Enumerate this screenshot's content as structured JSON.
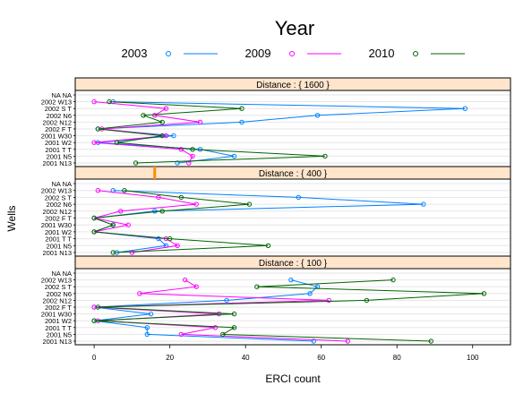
{
  "chart_data": {
    "type": "line",
    "title": "Year",
    "xlabel": "ERCI count",
    "ylabel": "Wells",
    "xlim": [
      -5,
      110
    ],
    "x_ticks": [
      0,
      20,
      40,
      60,
      80,
      100
    ],
    "wells": [
      "2001 N13",
      "2001 N5",
      "2001 T T",
      "2001 W2",
      "2001 W30",
      "2002 F T",
      "2002 N12",
      "2002 N6",
      "2002 S T",
      "2002 W13",
      "NA NA"
    ],
    "legend": [
      {
        "name": "2003",
        "color": "#0080ff"
      },
      {
        "name": "2009",
        "color": "#ff00ff"
      },
      {
        "name": "2010",
        "color": "#006400"
      }
    ],
    "panels": [
      {
        "label": "Distance : { 1600 }",
        "series": [
          {
            "name": "2003",
            "values": [
              22,
              37,
              28,
              1,
              21,
              1,
              39,
              59,
              98,
              5,
              null
            ]
          },
          {
            "name": "2009",
            "values": [
              25,
              26,
              23,
              0,
              19,
              2,
              28,
              16,
              19,
              0,
              null
            ]
          },
          {
            "name": "2010",
            "values": [
              11,
              61,
              26,
              6,
              18,
              1,
              18,
              13,
              39,
              4,
              null
            ]
          }
        ]
      },
      {
        "label": "Distance : { 400 }",
        "series": [
          {
            "name": "2003",
            "values": [
              6,
              19,
              17,
              0,
              5,
              0,
              16,
              87,
              54,
              5,
              null
            ]
          },
          {
            "name": "2009",
            "values": [
              10,
              22,
              19,
              0,
              9,
              0,
              7,
              27,
              17,
              1,
              null
            ]
          },
          {
            "name": "2010",
            "values": [
              5,
              46,
              20,
              0,
              5,
              0,
              18,
              41,
              23,
              8,
              null
            ]
          }
        ]
      },
      {
        "label": "Distance : { 100 }",
        "series": [
          {
            "name": "2003",
            "values": [
              58,
              14,
              14,
              0,
              15,
              0,
              35,
              57,
              59,
              52,
              null
            ]
          },
          {
            "name": "2009",
            "values": [
              67,
              23,
              32,
              1,
              33,
              0,
              62,
              12,
              27,
              24,
              null
            ]
          },
          {
            "name": "2010",
            "values": [
              89,
              34,
              37,
              0,
              37,
              1,
              72,
              103,
              43,
              79,
              null
            ]
          }
        ]
      }
    ],
    "strip_color": "#ffe5cc",
    "marker_color": "#ff8c00",
    "marker_value": 16
  }
}
